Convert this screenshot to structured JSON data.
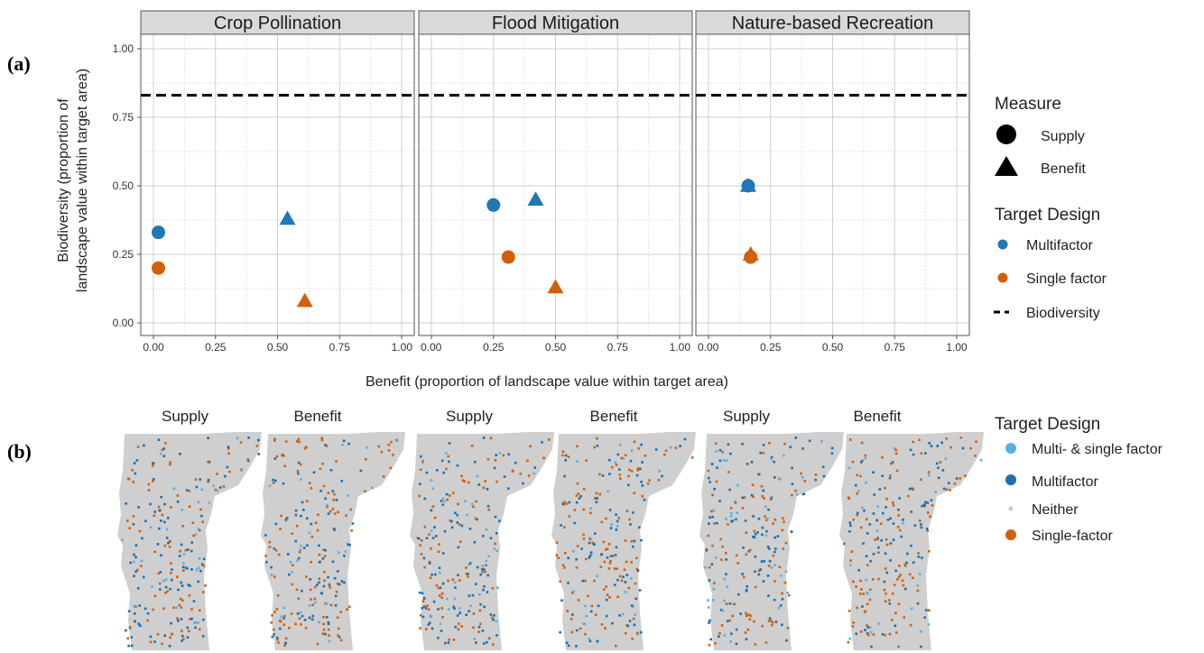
{
  "panel_labels": {
    "a": "(a)",
    "b": "(b)"
  },
  "chart_data": {
    "type": "scatter",
    "facets": [
      "Crop Pollination",
      "Flood Mitigation",
      "Nature-based Recreation"
    ],
    "xlabel": "Benefit (proportion of landscape value within target area)",
    "ylabel_line1": "Biodiversity (proportion of",
    "ylabel_line2": "landscape value within target area)",
    "xlim": [
      0,
      1
    ],
    "ylim": [
      0,
      1.05
    ],
    "x_ticks": [
      0,
      0.25,
      0.5,
      0.75,
      1
    ],
    "x_tick_labels": [
      "0.00",
      "0.25",
      "0.50",
      "0.75",
      "1.00"
    ],
    "y_ticks": [
      0,
      0.25,
      0.5,
      0.75,
      1
    ],
    "y_tick_labels": [
      "0.00",
      "0.25",
      "0.50",
      "0.75",
      "1.00"
    ],
    "biodiversity_line": 0.83,
    "grid": true,
    "colors": {
      "Multifactor": "#1f77b4",
      "Single factor": "#d35f0a"
    },
    "points": [
      {
        "facet": 0,
        "x": 0.02,
        "y": 0.33,
        "measure": "Supply",
        "design": "Multifactor"
      },
      {
        "facet": 0,
        "x": 0.02,
        "y": 0.2,
        "measure": "Supply",
        "design": "Single factor"
      },
      {
        "facet": 0,
        "x": 0.54,
        "y": 0.38,
        "measure": "Benefit",
        "design": "Multifactor"
      },
      {
        "facet": 0,
        "x": 0.61,
        "y": 0.08,
        "measure": "Benefit",
        "design": "Single factor"
      },
      {
        "facet": 1,
        "x": 0.25,
        "y": 0.43,
        "measure": "Supply",
        "design": "Multifactor"
      },
      {
        "facet": 1,
        "x": 0.31,
        "y": 0.24,
        "measure": "Supply",
        "design": "Single factor"
      },
      {
        "facet": 1,
        "x": 0.42,
        "y": 0.45,
        "measure": "Benefit",
        "design": "Multifactor"
      },
      {
        "facet": 1,
        "x": 0.5,
        "y": 0.13,
        "measure": "Benefit",
        "design": "Single factor"
      },
      {
        "facet": 2,
        "x": 0.16,
        "y": 0.5,
        "measure": "Supply",
        "design": "Multifactor"
      },
      {
        "facet": 2,
        "x": 0.16,
        "y": 0.5,
        "measure": "Benefit",
        "design": "Multifactor"
      },
      {
        "facet": 2,
        "x": 0.17,
        "y": 0.25,
        "measure": "Benefit",
        "design": "Single factor"
      },
      {
        "facet": 2,
        "x": 0.17,
        "y": 0.24,
        "measure": "Supply",
        "design": "Single factor"
      }
    ],
    "legend": {
      "measure_title": "Measure",
      "measure_items": [
        {
          "label": "Supply",
          "shape": "circle"
        },
        {
          "label": "Benefit",
          "shape": "triangle"
        }
      ],
      "design_title": "Target Design",
      "design_items": [
        {
          "label": "Multifactor",
          "color": "#1f77b4",
          "kind": "dot"
        },
        {
          "label": "Single factor",
          "color": "#d35f0a",
          "kind": "dot"
        },
        {
          "label": "Biodiversity",
          "color": "#000000",
          "kind": "dash"
        }
      ]
    }
  },
  "maps": {
    "titles": [
      "Supply",
      "Benefit",
      "Supply",
      "Benefit",
      "Supply",
      "Benefit"
    ],
    "legend_title": "Target Design",
    "legend_items": [
      {
        "label": "Multi- & single factor",
        "color": "#5aaee6"
      },
      {
        "label": "Multifactor",
        "color": "#1a6fb0"
      },
      {
        "label": "Neither",
        "color": "#c8c8c8"
      },
      {
        "label": "Single-factor",
        "color": "#d35f0a"
      }
    ],
    "base_color": "#cfcfcf"
  }
}
